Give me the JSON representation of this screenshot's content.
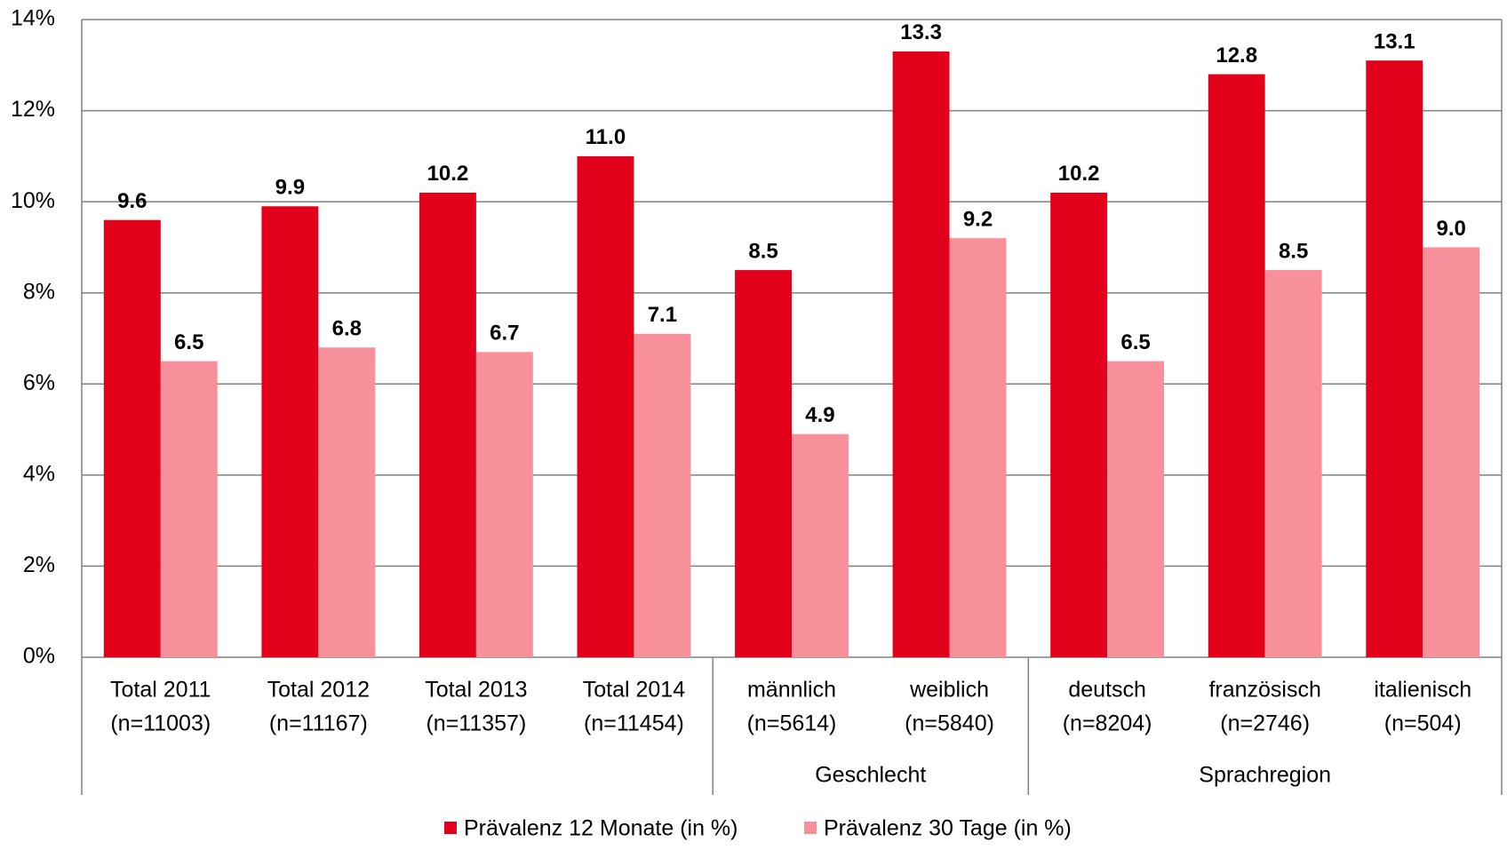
{
  "chart_data": {
    "type": "bar",
    "categories": [
      [
        "Total 2011",
        "(n=11003)"
      ],
      [
        "Total 2012",
        "(n=11167)"
      ],
      [
        "Total 2013",
        "(n=11357)"
      ],
      [
        "Total 2014",
        "(n=11454)"
      ],
      [
        "männlich",
        "(n=5614)"
      ],
      [
        "weiblich",
        "(n=5840)"
      ],
      [
        "deutsch",
        "(n=8204)"
      ],
      [
        "französisch",
        "(n=2746)"
      ],
      [
        "italienisch",
        "(n=504)"
      ]
    ],
    "groups": [
      {
        "label": null,
        "count": 4
      },
      {
        "label": "Geschlecht",
        "count": 2
      },
      {
        "label": "Sprachregion",
        "count": 3
      }
    ],
    "series": [
      {
        "name": "Prävalenz 12 Monate (in %)",
        "color": "#e2001a",
        "values": [
          9.6,
          9.9,
          10.2,
          11.0,
          8.5,
          13.3,
          10.2,
          12.8,
          13.1
        ],
        "value_labels": [
          "9.6",
          "9.9",
          "10.2",
          "11.0",
          "8.5",
          "13.3",
          "10.2",
          "12.8",
          "13.1"
        ]
      },
      {
        "name": "Prävalenz 30 Tage (in %)",
        "color": "#f7909a",
        "values": [
          6.5,
          6.8,
          6.7,
          7.1,
          4.9,
          9.2,
          6.5,
          8.5,
          9.0
        ],
        "value_labels": [
          "6.5",
          "6.8",
          "6.7",
          "7.1",
          "4.9",
          "9.2",
          "6.5",
          "8.5",
          "9.0"
        ]
      }
    ],
    "ylim": [
      0,
      14
    ],
    "yticks": [
      {
        "value": 0,
        "label": "0%"
      },
      {
        "value": 2,
        "label": "2%"
      },
      {
        "value": 4,
        "label": "4%"
      },
      {
        "value": 6,
        "label": "6%"
      },
      {
        "value": 8,
        "label": "8%"
      },
      {
        "value": 10,
        "label": "10%"
      },
      {
        "value": 12,
        "label": "12%"
      },
      {
        "value": 14,
        "label": "14%"
      }
    ],
    "grid": true,
    "legend": "bottom"
  }
}
